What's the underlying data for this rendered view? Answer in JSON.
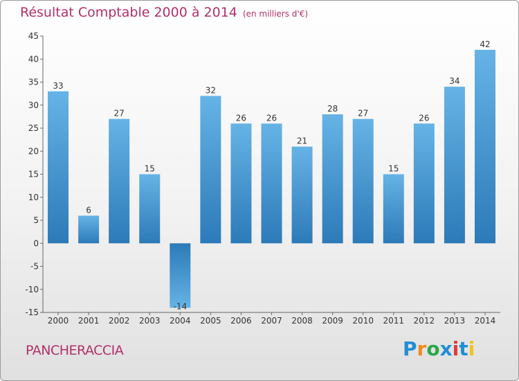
{
  "title": "Résultat Comptable 2000 à 2014",
  "subtitle": "(en milliers d'€)",
  "commune": "PANCHERACCIA",
  "logo": {
    "letters": [
      "P",
      "r",
      "o",
      "x",
      "i",
      "t",
      "i"
    ],
    "colors": [
      "#1f8fd6",
      "#f08a1c",
      "#2aa84a",
      "#1f8fd6",
      "#e03a3a",
      "#1f8fd6",
      "#f0c419"
    ]
  },
  "colors": {
    "bar_light": "#66b3e6",
    "bar_dark": "#2c7ab8",
    "title": "#b0306a"
  },
  "chart_data": {
    "type": "bar",
    "title": "Résultat Comptable 2000 à 2014",
    "subtitle": "(en milliers d'€)",
    "categories": [
      "2000",
      "2001",
      "2002",
      "2003",
      "2004",
      "2005",
      "2006",
      "2007",
      "2008",
      "2009",
      "2010",
      "2011",
      "2012",
      "2013",
      "2014"
    ],
    "values": [
      33,
      6,
      27,
      15,
      -14,
      32,
      26,
      26,
      21,
      28,
      27,
      15,
      26,
      34,
      42
    ],
    "ylim": [
      -15,
      45
    ],
    "yticks": [
      -15,
      -10,
      -5,
      0,
      5,
      10,
      15,
      20,
      25,
      30,
      35,
      40,
      45
    ],
    "grid": false,
    "legend": "none"
  }
}
